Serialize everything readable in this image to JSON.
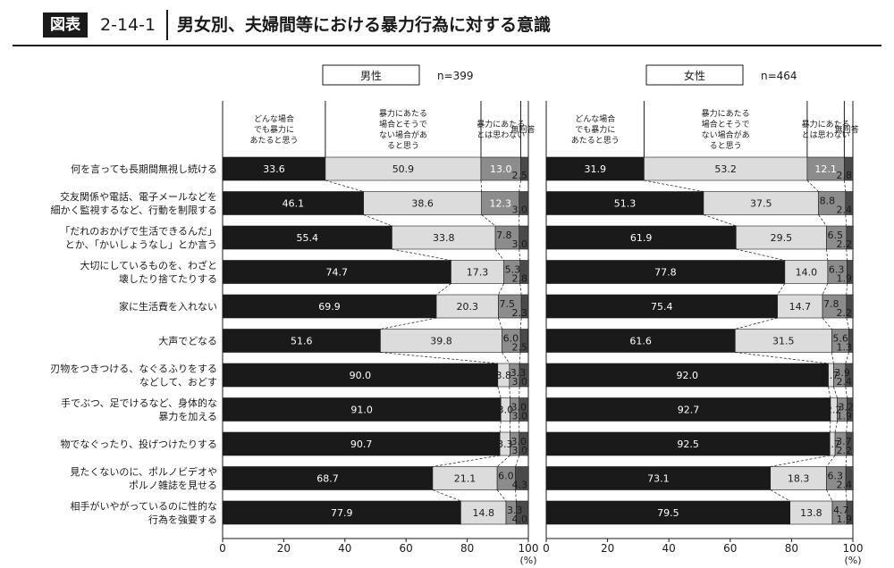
{
  "header": {
    "badge": "図表",
    "figure_number": "2-14-1",
    "title": "男女別、夫婦間等における暴力行為に対する意識"
  },
  "colors": {
    "always": "#1a1a1a",
    "depends": "#dcdcdc",
    "not_violence": "#8c8c8c",
    "no_answer": "#4a4a4a"
  },
  "chart_data": [
    {
      "type": "bar",
      "stacked": true,
      "orientation": "horizontal",
      "panel_label": "男性",
      "n_label": "n=399",
      "legend": [
        "どんな場合でも暴力にあたると思う",
        "暴力にあたる場合とそうでない場合があると思う",
        "暴力にあたるとは思わない",
        "無回答"
      ],
      "categories": [
        "何を言っても長期間無視し続ける",
        "交友関係や電話、電子メールなどを細かく監視するなど、行動を制限する",
        "「だれのおかげで生活できるんだ」とか、「かいしょうなし」とか言う",
        "大切にしているものを、わざと壊したり捨てたりする",
        "家に生活費を入れない",
        "大声でどなる",
        "刃物をつきつける、なぐるふりをするなどして、おどす",
        "手でぶつ、足でけるなど、身体的な暴力を加える",
        "物でなぐったり、投げつけたりする",
        "見たくないのに、ポルノビデオやポルノ雑誌を見せる",
        "相手がいやがっているのに性的な行為を強要する"
      ],
      "series": [
        {
          "name": "どんな場合でも暴力にあたると思う",
          "values": [
            33.6,
            46.1,
            55.4,
            74.7,
            69.9,
            51.6,
            90.0,
            91.0,
            90.7,
            68.7,
            77.9
          ]
        },
        {
          "name": "暴力にあたる場合とそうでない場合があると思う",
          "values": [
            50.9,
            38.6,
            33.8,
            17.3,
            20.3,
            39.8,
            3.8,
            3.0,
            3.3,
            21.1,
            14.8
          ]
        },
        {
          "name": "暴力にあたるとは思わない",
          "values": [
            13.0,
            12.3,
            7.8,
            5.3,
            7.5,
            6.0,
            3.3,
            3.0,
            3.0,
            6.0,
            3.3
          ]
        },
        {
          "name": "無回答",
          "values": [
            2.5,
            3.0,
            3.0,
            2.8,
            2.3,
            2.5,
            3.0,
            3.0,
            3.0,
            4.3,
            4.0
          ]
        }
      ],
      "xlim": [
        0,
        100
      ],
      "xticks": [
        0,
        20,
        40,
        60,
        80,
        100
      ],
      "xunit": "(%)"
    },
    {
      "type": "bar",
      "stacked": true,
      "orientation": "horizontal",
      "panel_label": "女性",
      "n_label": "n=464",
      "legend": [
        "どんな場合でも暴力にあたると思う",
        "暴力にあたる場合とそうでない場合があると思う",
        "暴力にあたるとは思わない",
        "無回答"
      ],
      "series": [
        {
          "name": "どんな場合でも暴力にあたると思う",
          "values": [
            31.9,
            51.3,
            61.9,
            77.8,
            75.4,
            61.6,
            92.0,
            92.7,
            92.5,
            73.1,
            79.5
          ]
        },
        {
          "name": "暴力にあたる場合とそうでない場合があると思う",
          "values": [
            53.2,
            37.5,
            29.5,
            14.0,
            14.7,
            31.5,
            1.7,
            2.2,
            1.7,
            18.3,
            13.8
          ]
        },
        {
          "name": "暴力にあたるとは思わない",
          "values": [
            12.1,
            8.8,
            6.5,
            6.3,
            7.8,
            5.6,
            3.9,
            3.2,
            3.7,
            6.3,
            4.7
          ]
        },
        {
          "name": "無回答",
          "values": [
            2.8,
            2.4,
            2.2,
            1.9,
            2.2,
            1.3,
            2.4,
            1.9,
            2.2,
            2.4,
            1.9
          ]
        }
      ],
      "xlim": [
        0,
        100
      ],
      "xticks": [
        0,
        20,
        40,
        60,
        80,
        100
      ],
      "xunit": "(%)"
    }
  ]
}
